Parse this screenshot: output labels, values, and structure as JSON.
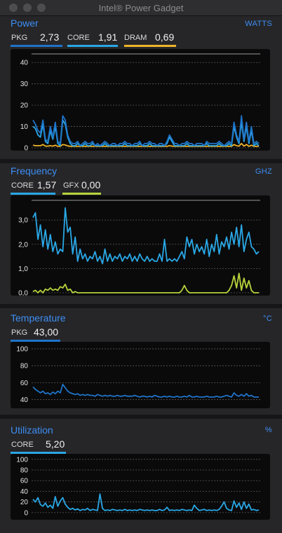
{
  "window": {
    "title": "Intel® Power Gadget"
  },
  "colors": {
    "accent": "#3d8ef5",
    "core": "#2aa7e6",
    "pkg": "#1f73c8",
    "dram": "#f0b429",
    "gfx": "#b6d33c"
  },
  "panels": {
    "power": {
      "title": "Power",
      "unit": "WATTS",
      "metrics": [
        {
          "label": "PKG",
          "value": "2,73"
        },
        {
          "label": "CORE",
          "value": "1,91"
        },
        {
          "label": "DRAM",
          "value": "0,69"
        }
      ],
      "chart_data": {
        "type": "line",
        "ylim": [
          0,
          45
        ],
        "yticks": [
          "0",
          "10",
          "20",
          "30",
          "40"
        ],
        "ytick_values": [
          0,
          10,
          20,
          30,
          40
        ],
        "series": [
          {
            "name": "PKG",
            "values": [
              13,
              11,
              8,
              7,
              13,
              4,
              3,
              10,
              5,
              12,
              3,
              2,
              15,
              13,
              6,
              3,
              2,
              2,
              3,
              1,
              2,
              3,
              2,
              2,
              3,
              1,
              2,
              1,
              2,
              3,
              2,
              1,
              2,
              2,
              1,
              2,
              2,
              3,
              2,
              2,
              1,
              2,
              2,
              3,
              1,
              2,
              2,
              3,
              2,
              2,
              1,
              2,
              2,
              1,
              3,
              6,
              4,
              2,
              2,
              1,
              2,
              2,
              3,
              2,
              2,
              1,
              2,
              2,
              2,
              1,
              3,
              2,
              2,
              2,
              2,
              3,
              2,
              1,
              2,
              3,
              2,
              12,
              6,
              3,
              15,
              4,
              12,
              3,
              10,
              2,
              3,
              2
            ]
          },
          {
            "name": "CORE",
            "values": [
              10,
              9,
              6,
              5,
              11,
              3,
              2,
              8,
              4,
              10,
              2,
              1,
              13,
              11,
              5,
              2,
              1,
              1,
              2,
              1,
              1,
              2,
              1,
              1,
              2,
              1,
              1,
              1,
              1,
              2,
              1,
              1,
              1,
              1,
              1,
              1,
              1,
              2,
              1,
              1,
              1,
              1,
              1,
              2,
              1,
              1,
              1,
              2,
              1,
              1,
              1,
              1,
              1,
              1,
              2,
              5,
              3,
              1,
              1,
              1,
              1,
              1,
              2,
              1,
              1,
              1,
              1,
              1,
              1,
              1,
              2,
              1,
              1,
              1,
              1,
              2,
              1,
              1,
              1,
              2,
              1,
              10,
              5,
              2,
              12,
              3,
              10,
              2,
              8,
              1,
              2,
              1
            ]
          },
          {
            "name": "DRAM",
            "values": [
              1.2,
              1,
              1,
              1,
              1.5,
              0.8,
              0.8,
              1,
              0.8,
              1.2,
              0.7,
              0.7,
              1.5,
              1.3,
              0.9,
              0.7,
              0.7,
              0.7,
              0.7,
              0.7,
              0.7,
              0.7,
              0.7,
              0.7,
              0.7,
              0.7,
              0.7,
              0.7,
              0.7,
              0.7,
              0.7,
              0.7,
              0.7,
              0.7,
              0.7,
              0.7,
              0.7,
              0.7,
              0.7,
              0.7,
              0.7,
              0.7,
              0.7,
              0.7,
              0.7,
              0.7,
              0.7,
              0.7,
              0.7,
              0.7,
              0.7,
              0.7,
              0.7,
              0.7,
              0.7,
              1,
              0.8,
              0.7,
              0.7,
              0.7,
              0.7,
              0.7,
              0.7,
              0.7,
              0.7,
              0.7,
              0.7,
              0.7,
              0.7,
              0.7,
              0.7,
              0.7,
              0.7,
              0.7,
              0.7,
              0.7,
              0.7,
              0.7,
              0.7,
              0.7,
              0.7,
              1.5,
              1,
              0.8,
              2,
              0.8,
              1.5,
              0.7,
              1.2,
              0.7,
              0.7,
              0.7
            ]
          }
        ]
      }
    },
    "frequency": {
      "title": "Frequency",
      "unit": "GHZ",
      "metrics": [
        {
          "label": "CORE",
          "value": "1,57"
        },
        {
          "label": "GFX",
          "value": "0,00"
        }
      ],
      "chart_data": {
        "type": "line",
        "ylim": [
          0,
          3.9
        ],
        "yticks": [
          "0,0",
          "1,0",
          "2,0",
          "3,0"
        ],
        "ytick_values": [
          0,
          1,
          2,
          3
        ],
        "series": [
          {
            "name": "CORE",
            "values": [
              3.1,
              3.3,
              2.2,
              2.8,
              1.9,
              2.6,
              1.8,
              2.4,
              1.7,
              2.1,
              1.6,
              1.8,
              1.7,
              3.5,
              2.5,
              2.7,
              1.6,
              2.3,
              1.3,
              1.8,
              1.4,
              1.6,
              1.3,
              1.5,
              1.4,
              1.7,
              1.3,
              1.5,
              1.2,
              1.8,
              1.3,
              1.6,
              1.3,
              1.5,
              1.4,
              1.6,
              1.3,
              1.5,
              1.4,
              1.6,
              1.3,
              1.5,
              1.3,
              1.6,
              1.4,
              1.3,
              1.5,
              1.3,
              1.4,
              1.3,
              1.3,
              1.6,
              1.3,
              2.2,
              1.3,
              1.4,
              1.3,
              1.4,
              1.3,
              1.5,
              1.7,
              1.4,
              2.3,
              1.9,
              2.2,
              1.6,
              2.0,
              1.7,
              1.9,
              1.6,
              2.2,
              1.5,
              2.0,
              1.7,
              2.4,
              1.6,
              2.1,
              1.9,
              2.3,
              1.8,
              2.5,
              2.0,
              2.7,
              1.9,
              2.8,
              1.7,
              2.2,
              2.5,
              1.9,
              1.8,
              1.6,
              1.7
            ]
          },
          {
            "name": "GFX",
            "values": [
              0.05,
              0.1,
              0,
              0.1,
              0,
              0.15,
              0.1,
              0.2,
              0.1,
              0.15,
              0.1,
              0.25,
              0.2,
              0.35,
              0.1,
              0.15,
              0,
              0.05,
              0,
              0,
              0,
              0,
              0,
              0,
              0,
              0,
              0,
              0,
              0,
              0,
              0,
              0,
              0,
              0,
              0,
              0,
              0,
              0,
              0,
              0,
              0,
              0,
              0,
              0,
              0,
              0,
              0,
              0,
              0,
              0,
              0,
              0,
              0,
              0,
              0,
              0,
              0,
              0,
              0,
              0,
              0.1,
              0.3,
              0.1,
              0,
              0,
              0,
              0,
              0,
              0,
              0,
              0,
              0,
              0,
              0,
              0,
              0,
              0,
              0,
              0,
              0.1,
              0.3,
              0.7,
              0.2,
              0.8,
              0.1,
              0.6,
              0.2,
              0.5,
              0.1,
              0,
              0,
              0
            ]
          }
        ]
      }
    },
    "temperature": {
      "title": "Temperature",
      "unit": "°C",
      "metrics": [
        {
          "label": "PKG",
          "value": "43,00"
        }
      ],
      "chart_data": {
        "type": "line",
        "ylim": [
          33,
          105
        ],
        "yticks": [
          "40",
          "60",
          "80",
          "100"
        ],
        "ytick_values": [
          40,
          60,
          80,
          100
        ],
        "series": [
          {
            "name": "PKG",
            "values": [
              55,
              52,
              50,
              48,
              50,
              47,
              48,
              46,
              49,
              47,
              50,
              48,
              58,
              54,
              50,
              48,
              47,
              46,
              47,
              45,
              46,
              45,
              46,
              45,
              45,
              44,
              46,
              45,
              44,
              45,
              44,
              45,
              44,
              44,
              45,
              44,
              44,
              45,
              44,
              44,
              44,
              45,
              44,
              43,
              44,
              44,
              43,
              44,
              43,
              45,
              44,
              43,
              43,
              44,
              43,
              44,
              43,
              43,
              44,
              43,
              43,
              44,
              43,
              45,
              43,
              43,
              44,
              43,
              43,
              43,
              44,
              43,
              43,
              43,
              44,
              43,
              43,
              44,
              45,
              44,
              43,
              48,
              45,
              44,
              46,
              44,
              47,
              44,
              45,
              43,
              43,
              43
            ]
          }
        ]
      }
    },
    "utilization": {
      "title": "Utilization",
      "unit": "%",
      "metrics": [
        {
          "label": "CORE",
          "value": "5,20"
        }
      ],
      "chart_data": {
        "type": "line",
        "ylim": [
          -8,
          105
        ],
        "yticks": [
          "0",
          "20",
          "40",
          "60",
          "80",
          "100"
        ],
        "ytick_values": [
          0,
          20,
          40,
          60,
          80,
          100
        ],
        "series": [
          {
            "name": "CORE",
            "values": [
              25,
              20,
              28,
              15,
              12,
              18,
              10,
              14,
              8,
              30,
              12,
              22,
              28,
              16,
              10,
              6,
              8,
              5,
              7,
              4,
              6,
              5,
              8,
              4,
              6,
              5,
              4,
              35,
              8,
              4,
              5,
              4,
              6,
              5,
              4,
              5,
              4,
              6,
              4,
              5,
              4,
              5,
              4,
              6,
              5,
              4,
              5,
              4,
              5,
              4,
              4,
              6,
              4,
              5,
              10,
              4,
              5,
              4,
              5,
              4,
              6,
              5,
              4,
              5,
              4,
              14,
              8,
              4,
              5,
              6,
              4,
              5,
              4,
              5,
              4,
              6,
              12,
              20,
              8,
              5,
              4,
              22,
              10,
              18,
              6,
              20,
              8,
              16,
              5,
              6,
              4,
              5
            ]
          }
        ]
      }
    }
  }
}
